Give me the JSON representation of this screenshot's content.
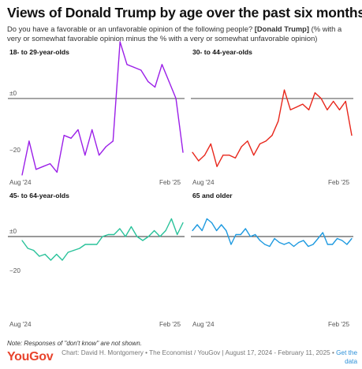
{
  "header": {
    "title": "Views of Donald Trump by age over the past six months",
    "subtitle_pre": "Do you have a favorable or an unfavorable opinion of the following people?",
    "subtitle_bold": "[Donald Trump]",
    "subtitle_post": "(% with a very or somewhat favorable opinion minus the % with a very or somewhat unfavorable opinion)"
  },
  "footer": {
    "note": "Note: Responses of \"don't know\" are not shown.",
    "logo": "YouGov",
    "credit": "Chart: David H. Montgomery • The Economist / YouGov | August 17, 2024 - February 11, 2025 •",
    "link": "Get the data"
  },
  "chart_data": [
    {
      "type": "line",
      "title": "18- to 29-year-olds",
      "color": "#9b1fe8",
      "ylim": [
        -27,
        15
      ],
      "yticks": [
        {
          "v": 0,
          "label": "±0"
        },
        {
          "v": -20,
          "label": "−20"
        }
      ],
      "xtick_labels": [
        "Aug '24",
        "Feb '25"
      ],
      "values": [
        -27,
        -15,
        -25,
        -24,
        -23,
        -26,
        -13,
        -14,
        -11,
        -20,
        -11,
        -20,
        -17,
        -15,
        20,
        12,
        11,
        10,
        6,
        4,
        12,
        6,
        0,
        -19
      ]
    },
    {
      "type": "line",
      "title": "30- to 44-year-olds",
      "color": "#e8271c",
      "ylim": [
        -27,
        15
      ],
      "yticks": [
        {
          "v": 0,
          "label": "±0"
        },
        {
          "v": -20,
          "label": "−20"
        }
      ],
      "xtick_labels": [
        "Aug '24",
        "Feb '25"
      ],
      "values": [
        -19,
        -22,
        -20,
        -16,
        -24,
        -20,
        -20,
        -21,
        -17,
        -15,
        -20,
        -16,
        -15,
        -13,
        -8,
        3,
        -4,
        -3,
        -2,
        -4,
        2,
        0,
        -4,
        -1,
        -4,
        -1,
        -13
      ]
    },
    {
      "type": "line",
      "title": "45- to 64-year-olds",
      "color": "#29c29a",
      "ylim": [
        -20,
        12
      ],
      "yticks": [
        {
          "v": 0,
          "label": "±0"
        },
        {
          "v": -20,
          "label": "−20"
        }
      ],
      "xtick_labels": [
        "Aug '24",
        "Feb '25"
      ],
      "values": [
        -2,
        -6,
        -7,
        -10,
        -9,
        -12,
        -9,
        -12,
        -8,
        -7,
        -6,
        -4,
        -4,
        -4,
        0,
        1,
        1,
        4,
        0,
        5,
        0,
        -2,
        0,
        3,
        0,
        3,
        9,
        1,
        7
      ]
    },
    {
      "type": "line",
      "title": "65 and older",
      "color": "#1e9ae0",
      "ylim": [
        -20,
        12
      ],
      "yticks": [
        {
          "v": 0,
          "label": "±0"
        },
        {
          "v": -20,
          "label": "−20"
        }
      ],
      "xtick_labels": [
        "Aug '24",
        "Feb '25"
      ],
      "values": [
        3,
        6,
        3,
        9,
        7,
        3,
        6,
        3,
        -4,
        1,
        1,
        4,
        0,
        1,
        -2,
        -4,
        -5,
        -1,
        -3,
        -4,
        -3,
        -5,
        -3,
        -2,
        -5,
        -4,
        -1,
        2,
        -4,
        -4,
        -1,
        -2,
        -4,
        -1
      ]
    }
  ]
}
